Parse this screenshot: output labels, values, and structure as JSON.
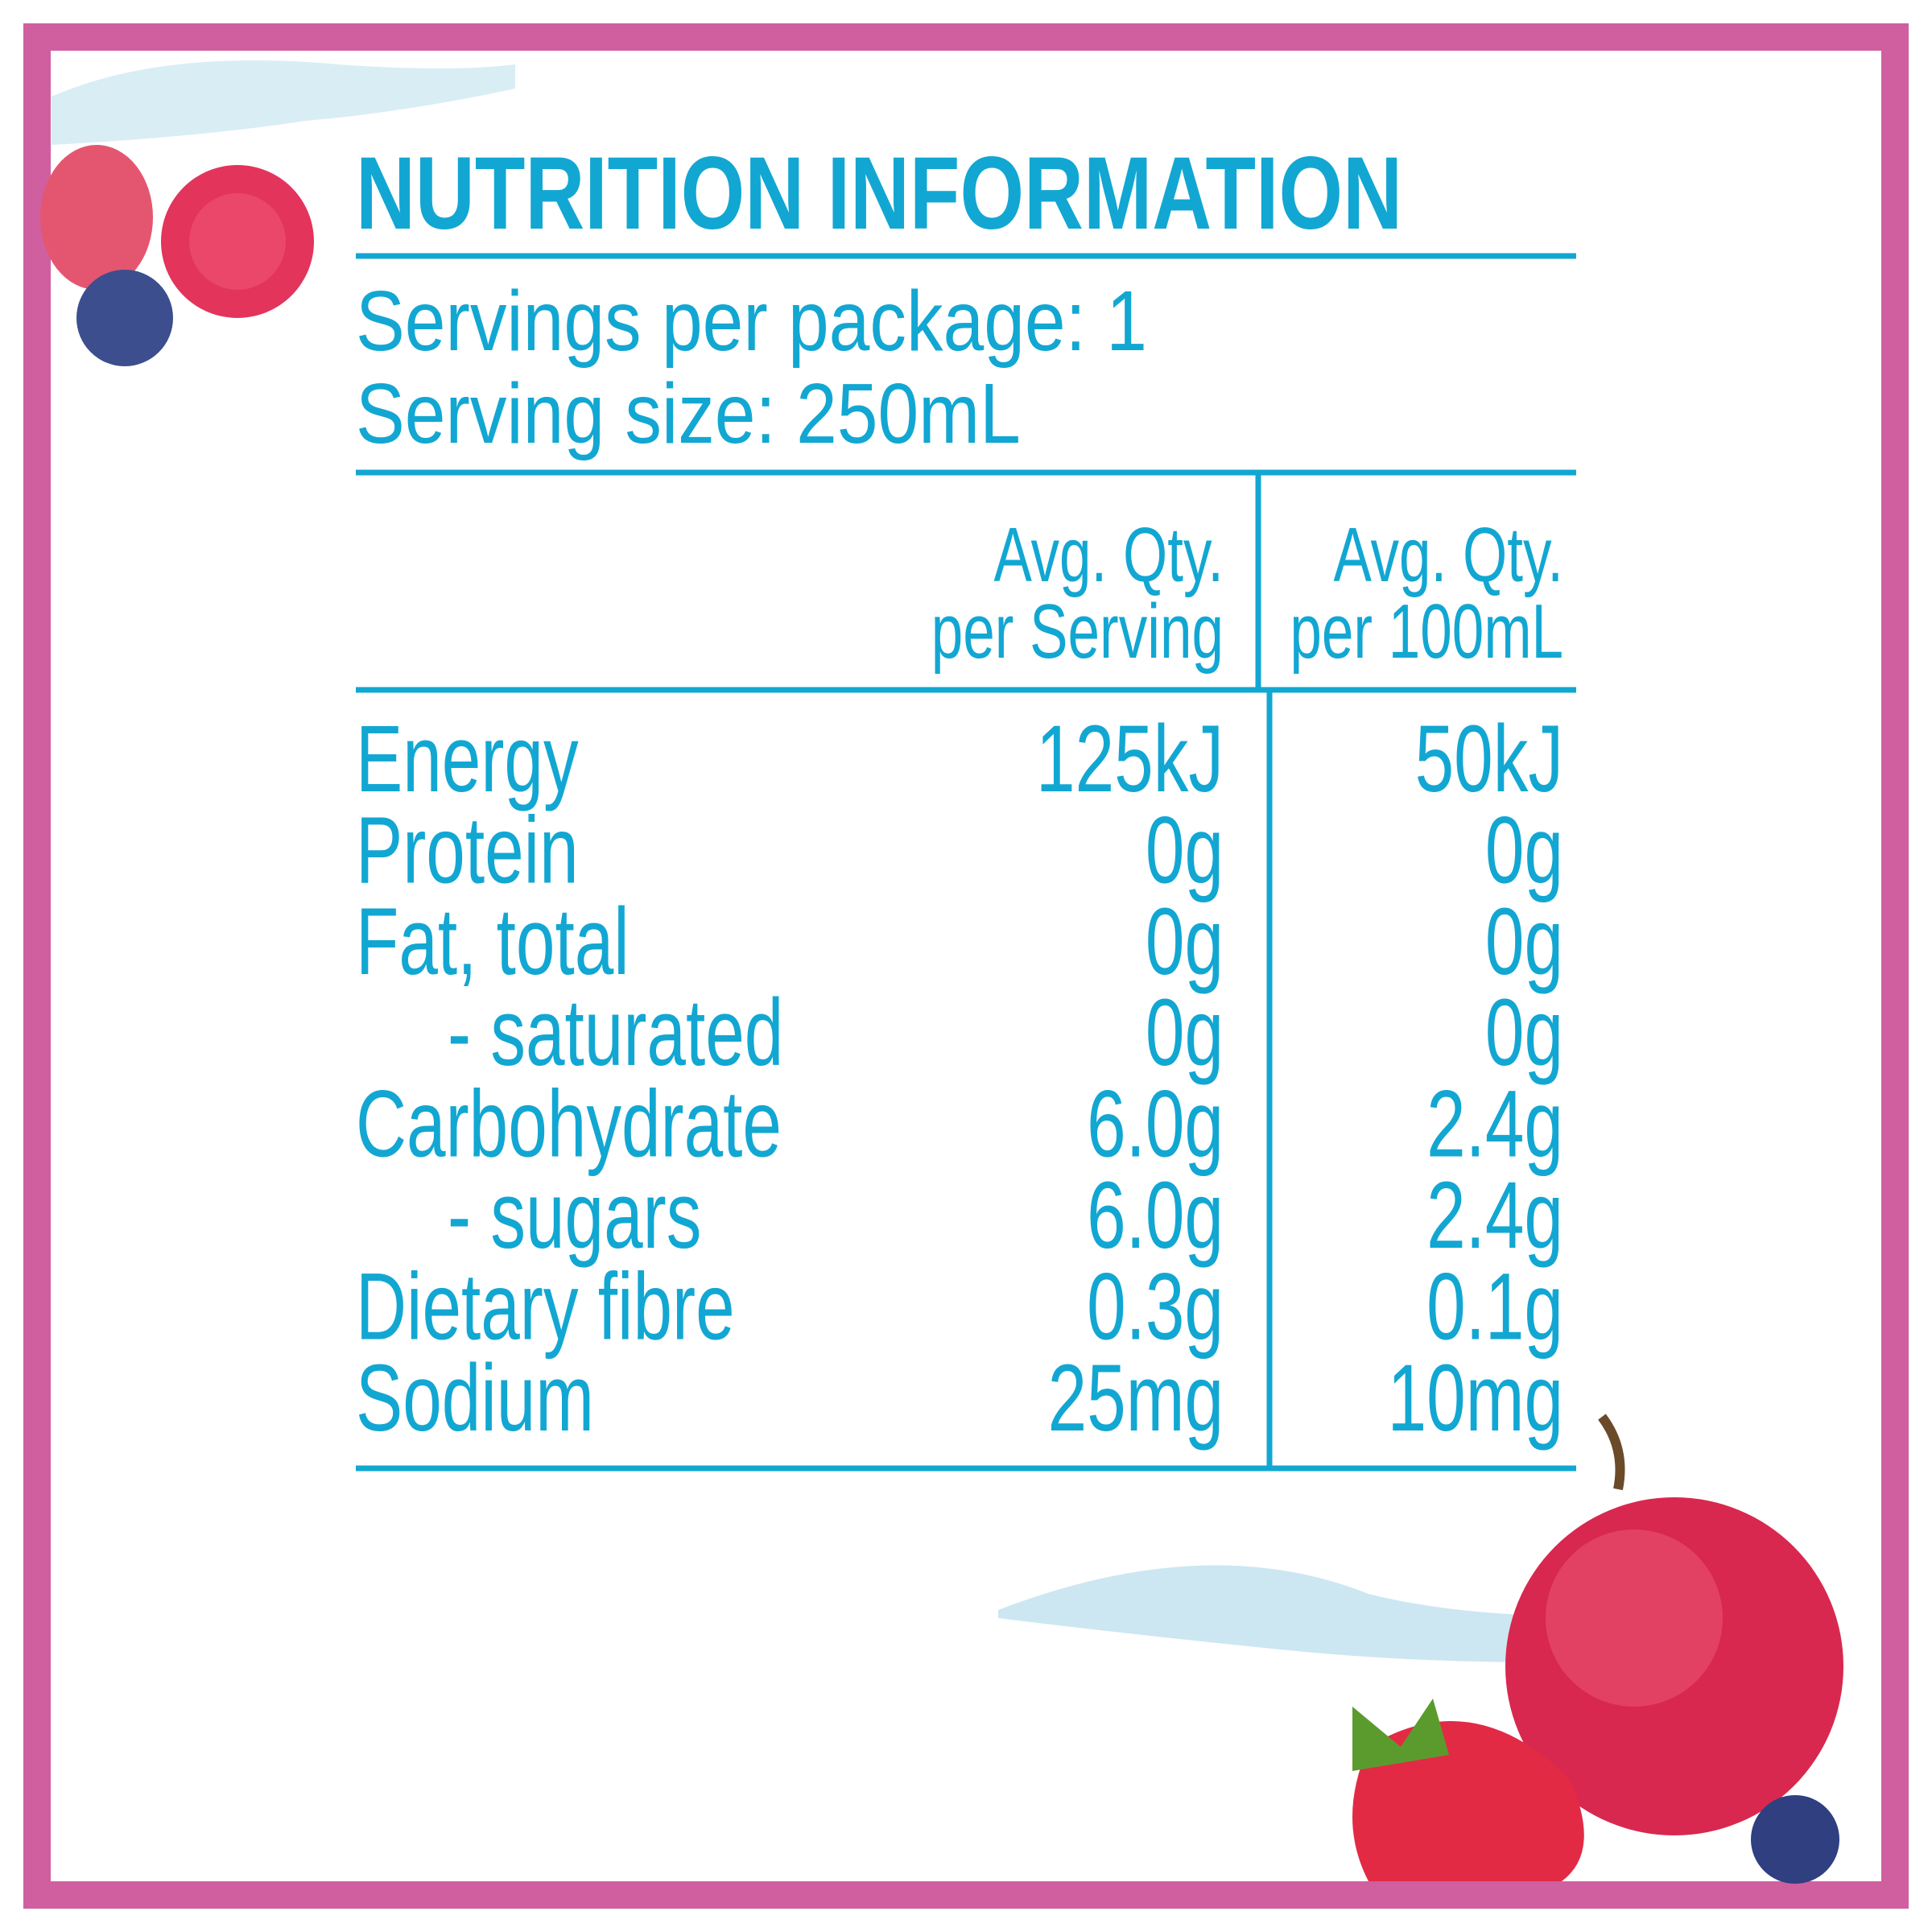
{
  "title": "NUTRITION INFORMATION",
  "servings": [
    "Servings per package: 1",
    "Serving size: 250mL"
  ],
  "columns": [
    [
      "Avg. Qty.",
      "per Serving"
    ],
    [
      "Avg. Qty.",
      "per 100mL"
    ]
  ],
  "rows": [
    {
      "name": "Energy",
      "per_serving": "125kJ",
      "per_100ml": "50kJ"
    },
    {
      "name": "Protein",
      "per_serving": "0g",
      "per_100ml": "0g"
    },
    {
      "name": "Fat, total",
      "per_serving": "0g",
      "per_100ml": "0g"
    },
    {
      "name": "- saturated",
      "per_serving": "0g",
      "per_100ml": "0g"
    },
    {
      "name": "Carbohydrate",
      "per_serving": "6.0g",
      "per_100ml": "2.4g"
    },
    {
      "name": "- sugars",
      "per_serving": "6.0g",
      "per_100ml": "2.4g"
    },
    {
      "name": "Dietary fibre",
      "per_serving": "0.3g",
      "per_100ml": "0.1g"
    },
    {
      "name": "Sodium",
      "per_serving": "25mg",
      "per_100ml": "10mg"
    }
  ]
}
